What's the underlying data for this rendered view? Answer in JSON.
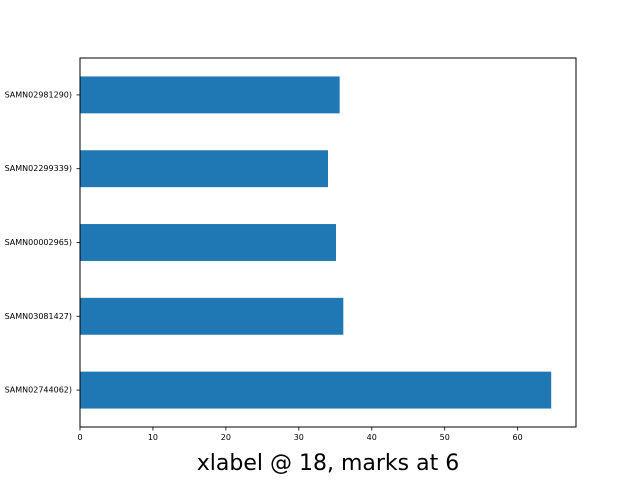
{
  "chart_data": {
    "type": "bar",
    "orientation": "horizontal",
    "categories": [
      "SAMN02981290)",
      "SAMN02299339)",
      "SAMN00002965)",
      "SAMN03081427)",
      "SAMN02744062)"
    ],
    "values": [
      35.6,
      34.0,
      35.1,
      36.1,
      64.6
    ],
    "xlabel": "xlabel @ 18, marks at 6",
    "ylabel": "",
    "title": "",
    "xlim": [
      0,
      68
    ],
    "xticks": [
      0,
      10,
      20,
      30,
      40,
      50,
      60
    ],
    "grid": false,
    "legend": "none",
    "bar_color": "#1f77b4"
  }
}
